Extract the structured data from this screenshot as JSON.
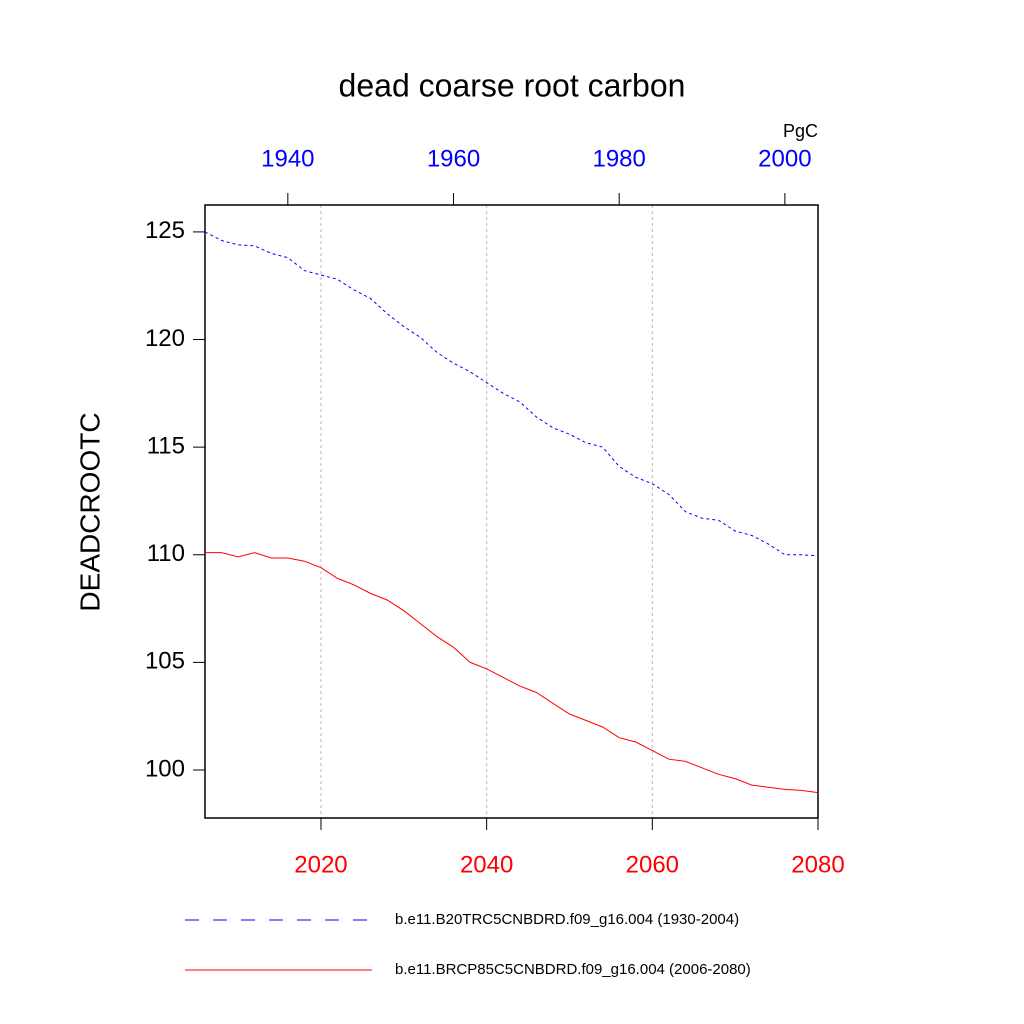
{
  "chart_data": {
    "type": "line",
    "title": "dead coarse root carbon",
    "ylabel": "DEADCROOTC",
    "units": "PgC",
    "xlim": [
      2006,
      2080
    ],
    "xticks": [
      2020,
      2040,
      2060,
      2080
    ],
    "xtick_color": "#ff0000",
    "x2lim": [
      1930,
      2004
    ],
    "x2ticks": [
      1940,
      1960,
      1980,
      2000
    ],
    "x2tick_color": "#0000ff",
    "ylim": [
      97.77,
      126.25
    ],
    "yticks": [
      100,
      105,
      110,
      115,
      120,
      125
    ],
    "grid": true,
    "series": [
      {
        "name": "b.e11.B20TRC5CNBDRD.f09_g16.004 (1930-2004)",
        "color": "#0000ff",
        "dash": true,
        "axis": "x2",
        "x": [
          1930,
          1932,
          1934,
          1936,
          1938,
          1940,
          1942,
          1944,
          1946,
          1948,
          1950,
          1952,
          1954,
          1956,
          1958,
          1960,
          1962,
          1964,
          1966,
          1968,
          1970,
          1972,
          1974,
          1976,
          1978,
          1980,
          1982,
          1984,
          1986,
          1988,
          1990,
          1992,
          1994,
          1996,
          1998,
          2000,
          2002,
          2004
        ],
        "values": [
          125.0,
          124.6,
          124.4,
          124.35,
          124.0,
          123.8,
          123.2,
          123.0,
          122.8,
          122.3,
          121.9,
          121.2,
          120.6,
          120.1,
          119.4,
          118.9,
          118.5,
          118.0,
          117.5,
          117.1,
          116.4,
          115.9,
          115.6,
          115.2,
          115.0,
          114.1,
          113.6,
          113.3,
          112.8,
          112.0,
          111.7,
          111.6,
          111.1,
          110.9,
          110.5,
          110.0,
          110.0,
          109.95
        ]
      },
      {
        "name": "b.e11.BRCP85C5CNBDRD.f09_g16.004 (2006-2080)",
        "color": "#ff0000",
        "dash": false,
        "x": [
          2006,
          2008,
          2010,
          2012,
          2014,
          2016,
          2018,
          2020,
          2022,
          2024,
          2026,
          2028,
          2030,
          2032,
          2034,
          2036,
          2038,
          2040,
          2042,
          2044,
          2046,
          2048,
          2050,
          2052,
          2054,
          2056,
          2058,
          2060,
          2062,
          2064,
          2066,
          2068,
          2070,
          2072,
          2074,
          2076,
          2078,
          2080
        ],
        "values": [
          110.1,
          110.1,
          109.9,
          110.1,
          109.85,
          109.85,
          109.7,
          109.4,
          108.9,
          108.6,
          108.2,
          107.9,
          107.4,
          106.8,
          106.2,
          105.7,
          105.0,
          104.7,
          104.3,
          103.9,
          103.6,
          103.1,
          102.6,
          102.3,
          102.0,
          101.5,
          101.3,
          100.9,
          100.5,
          100.4,
          100.1,
          99.8,
          99.6,
          99.3,
          99.2,
          99.1,
          99.05,
          98.95
        ]
      }
    ]
  }
}
